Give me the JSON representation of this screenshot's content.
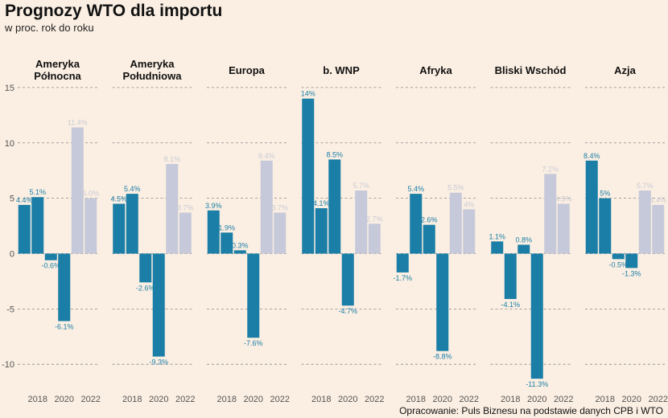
{
  "title": "Prognozy WTO dla importu",
  "subtitle": "w proc. rok do roku",
  "caption": "Opracowanie: Puls Biznesu na podstawie danych CPB i WTO",
  "colors": {
    "background": "#fbefe3",
    "historical": "#1a7ea6",
    "forecast": "#c6c9d9",
    "grid": "#8a8a8a",
    "label_historical": "#1a7ea6",
    "label_forecast": "#c9cad3"
  },
  "chart_data": {
    "type": "bar",
    "facets": true,
    "ylim": [
      -11.8,
      15.5
    ],
    "yticks": [
      -10,
      -5,
      0,
      5,
      10,
      15
    ],
    "years": [
      2017,
      2018,
      2019,
      2020,
      2021,
      2022
    ],
    "xticks": [
      "2018",
      "2020",
      "2022"
    ],
    "forecast_from_year": 2021,
    "grid": "dashed horizontal",
    "panels": [
      {
        "name": "Ameryka Północna",
        "lines": [
          "Ameryka",
          "Północna"
        ],
        "values": [
          4.4,
          5.1,
          -0.6,
          -6.1,
          11.4,
          5.0
        ],
        "labels": [
          "4.4%",
          "5.1%",
          "-0.6%",
          "-6.1%",
          "11.4%",
          "5.0%"
        ]
      },
      {
        "name": "Ameryka Południowa",
        "lines": [
          "Ameryka",
          "Południowa"
        ],
        "values": [
          4.5,
          5.4,
          -2.6,
          -9.3,
          8.1,
          3.7
        ],
        "labels": [
          "4.5%",
          "5.4%",
          "-2.6%",
          "-9.3%",
          "8.1%",
          "3.7%"
        ]
      },
      {
        "name": "Europa",
        "lines": [
          "Europa"
        ],
        "values": [
          3.9,
          1.9,
          0.3,
          -7.6,
          8.4,
          3.7
        ],
        "labels": [
          "3.9%",
          "1.9%",
          "0.3%",
          "-7.6%",
          "8.4%",
          "3.7%"
        ]
      },
      {
        "name": "b. WNP",
        "lines": [
          "b. WNP"
        ],
        "values": [
          14.0,
          4.1,
          8.5,
          -4.7,
          5.7,
          2.7
        ],
        "labels": [
          "14%",
          "4.1%",
          "8.5%",
          "-4.7%",
          "5.7%",
          "2.7%"
        ]
      },
      {
        "name": "Afryka",
        "lines": [
          "Afryka"
        ],
        "values": [
          -1.7,
          5.4,
          2.6,
          -8.8,
          5.5,
          4.0
        ],
        "labels": [
          "-1.7%",
          "5.4%",
          "2.6%",
          "-8.8%",
          "5.5%",
          "4%"
        ]
      },
      {
        "name": "Bliski Wschód",
        "lines": [
          "Bliski Wschód"
        ],
        "values": [
          1.1,
          -4.1,
          0.8,
          -11.3,
          7.2,
          4.5
        ],
        "labels": [
          "1.1%",
          "-4.1%",
          "0.8%",
          "-11.3%",
          "7.2%",
          "4.5%"
        ]
      },
      {
        "name": "Azja",
        "lines": [
          "Azja"
        ],
        "values": [
          8.4,
          5.0,
          -0.5,
          -1.3,
          5.7,
          4.4
        ],
        "labels": [
          "8.4%",
          "5%",
          "-0.5%",
          "-1.3%",
          "5.7%",
          "4.4%"
        ]
      }
    ]
  }
}
